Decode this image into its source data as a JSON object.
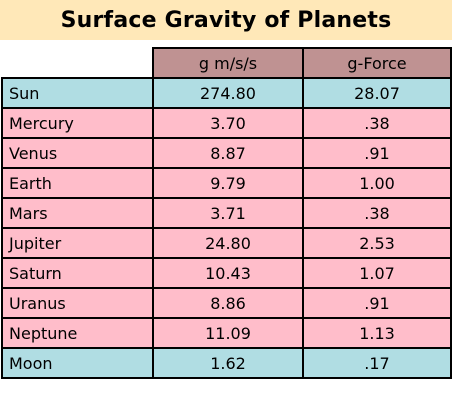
{
  "title": "Surface Gravity of Planets",
  "headers": [
    "",
    "g m/s/s",
    "g-Force"
  ],
  "rows": [
    {
      "name": "Sun",
      "g": "274.80",
      "gforce": "28.07",
      "color": "#b0dde3",
      "style": "blue"
    },
    {
      "name": "Mercury",
      "g": "3.70",
      "gforce": ".38",
      "color": "#ffbdca",
      "style": "pink"
    },
    {
      "name": "Venus",
      "g": "8.87",
      "gforce": ".91",
      "color": "#ffbdca",
      "style": "pink"
    },
    {
      "name": "Earth",
      "g": "9.79",
      "gforce": "1.00",
      "color": "#ffbdca",
      "style": "pink"
    },
    {
      "name": "Mars",
      "g": "3.71",
      "gforce": ".38",
      "color": "#ffbdca",
      "style": "pink"
    },
    {
      "name": "Jupiter",
      "g": "24.80",
      "gforce": "2.53",
      "color": "#ffbdca",
      "style": "pink"
    },
    {
      "name": "Saturn",
      "g": "10.43",
      "gforce": "1.07",
      "color": "#ffbdca",
      "style": "pink"
    },
    {
      "name": "Uranus",
      "g": "8.86",
      "gforce": ".91",
      "color": "#ffbdca",
      "style": "pink"
    },
    {
      "name": "Neptune",
      "g": "11.09",
      "gforce": "1.13",
      "color": "#ffbdca",
      "style": "pink"
    },
    {
      "name": "Moon",
      "g": "1.62",
      "gforce": ".17",
      "color": "#b0dde3",
      "style": "blue"
    }
  ],
  "colors": {
    "title_band": "#ffe8b8",
    "header": "#bf9292",
    "row_blue": "#b0dde3",
    "row_pink": "#ffbdca"
  }
}
